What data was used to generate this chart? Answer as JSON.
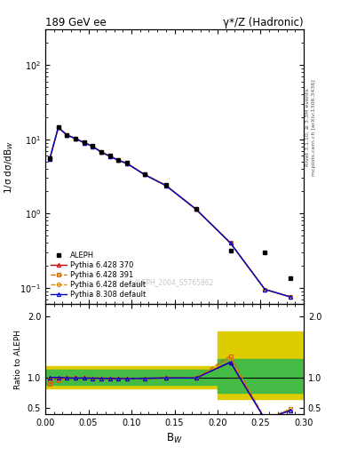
{
  "title_left": "189 GeV ee",
  "title_right": "γ*/Z (Hadronic)",
  "right_label_top": "Rivet 3.1.10, ≥ 3.3M events",
  "right_label_bottom": "mcplots.cern.ch [arXiv:1306.3436]",
  "watermark": "ALEPH_2004_S5765862",
  "xlabel": "B$_{W}$",
  "ylabel_main": "1/σ dσ/dB$_{W}$",
  "ylabel_ratio": "Ratio to ALEPH",
  "xlim": [
    0.0,
    0.3
  ],
  "ylim_main": [
    0.06,
    300
  ],
  "ylim_ratio": [
    0.4,
    2.2
  ],
  "bw_x": [
    0.005,
    0.015,
    0.025,
    0.035,
    0.045,
    0.055,
    0.065,
    0.075,
    0.085,
    0.095,
    0.115,
    0.14,
    0.175,
    0.215,
    0.255,
    0.285
  ],
  "aleph_y": [
    5.5,
    14.5,
    11.5,
    10.3,
    9.1,
    8.1,
    6.8,
    6.0,
    5.3,
    4.8,
    3.4,
    2.4,
    1.15,
    0.32,
    0.3,
    0.135
  ],
  "p370_y": [
    5.4,
    14.4,
    11.4,
    10.2,
    9.0,
    8.0,
    6.7,
    5.9,
    5.2,
    4.7,
    3.35,
    2.38,
    1.14,
    0.4,
    0.095,
    0.075
  ],
  "p391_y": [
    5.4,
    14.4,
    11.4,
    10.2,
    9.0,
    8.0,
    6.7,
    5.9,
    5.2,
    4.7,
    3.35,
    2.38,
    1.14,
    0.4,
    0.095,
    0.075
  ],
  "pdef_y": [
    5.45,
    14.45,
    11.45,
    10.25,
    9.05,
    8.05,
    6.75,
    5.95,
    5.25,
    4.75,
    3.38,
    2.4,
    1.15,
    0.4,
    0.095,
    0.075
  ],
  "p8def_y": [
    5.4,
    14.4,
    11.4,
    10.2,
    9.0,
    8.0,
    6.7,
    5.9,
    5.2,
    4.7,
    3.35,
    2.38,
    1.14,
    0.4,
    0.095,
    0.075
  ],
  "ratio_x": [
    0.005,
    0.015,
    0.025,
    0.035,
    0.045,
    0.055,
    0.065,
    0.075,
    0.085,
    0.095,
    0.115,
    0.14,
    0.175,
    0.215,
    0.255,
    0.285
  ],
  "ratio_p370": [
    0.98,
    0.993,
    0.991,
    0.99,
    0.989,
    0.988,
    0.985,
    0.983,
    0.981,
    0.979,
    0.985,
    0.992,
    0.991,
    1.25,
    0.317,
    0.46
  ],
  "ratio_p391": [
    0.9,
    0.945,
    0.991,
    0.99,
    0.989,
    0.988,
    0.985,
    0.983,
    0.981,
    0.979,
    0.985,
    0.992,
    0.991,
    1.35,
    0.317,
    0.48
  ],
  "ratio_pdef": [
    0.98,
    0.993,
    0.991,
    0.99,
    0.989,
    0.988,
    0.985,
    0.983,
    0.981,
    0.979,
    0.985,
    0.992,
    0.991,
    1.3,
    0.317,
    0.48
  ],
  "ratio_p8def": [
    1.0,
    1.0,
    0.991,
    0.99,
    0.989,
    0.988,
    0.985,
    0.983,
    0.981,
    0.979,
    0.985,
    0.992,
    0.991,
    1.25,
    0.317,
    0.46
  ],
  "band_x_edges": [
    0.0,
    0.05,
    0.1,
    0.15,
    0.2,
    0.25,
    0.3
  ],
  "band_yellow_lo": [
    0.82,
    0.82,
    0.82,
    0.82,
    0.65,
    0.65,
    0.65
  ],
  "band_yellow_hi": [
    1.18,
    1.18,
    1.18,
    1.18,
    1.75,
    1.75,
    1.75
  ],
  "band_green_lo": [
    0.88,
    0.88,
    0.88,
    0.88,
    0.75,
    0.75,
    0.75
  ],
  "band_green_hi": [
    1.12,
    1.12,
    1.12,
    1.12,
    1.3,
    1.3,
    1.3
  ],
  "color_p370": "#cc0000",
  "color_p391": "#cc6600",
  "color_pdef": "#dd8800",
  "color_p8def": "#0000cc",
  "color_aleph": "#000000",
  "color_green": "#44bb44",
  "color_yellow": "#ddcc00"
}
